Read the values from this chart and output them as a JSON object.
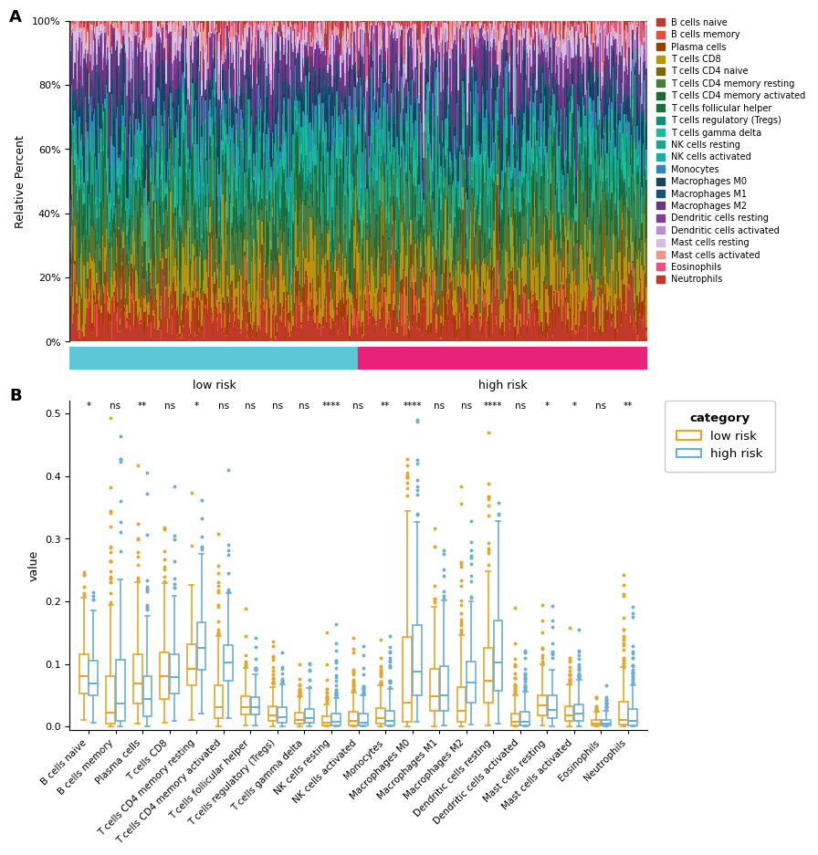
{
  "cell_types": [
    "B cells naive",
    "B cells memory",
    "Plasma cells",
    "T cells CD8",
    "T cells CD4 naive",
    "T cells CD4 memory resting",
    "T cells CD4 memory activated",
    "T cells follicular helper",
    "T cells regulatory (Tregs)",
    "T cells gamma delta",
    "NK cells resting",
    "NK cells activated",
    "Monocytes",
    "Macrophages M0",
    "Macrophages M1",
    "Macrophages M2",
    "Dendritic cells resting",
    "Dendritic cells activated",
    "Mast cells resting",
    "Mast cells activated",
    "Eosinophils",
    "Neutrophils"
  ],
  "cell_colors": [
    "#C0392B",
    "#E74C3C",
    "#A04000",
    "#B7950B",
    "#7D6608",
    "#4A7C3F",
    "#1D6A3B",
    "#196F3D",
    "#148F77",
    "#1ABC9C",
    "#17A589",
    "#1AAEAB",
    "#2E86C1",
    "#154360",
    "#1A5276",
    "#6C3483",
    "#7D3C98",
    "#BB8FCE",
    "#D7BDE2",
    "#F1948A",
    "#E75480",
    "#C0392B"
  ],
  "n_low": 250,
  "n_high": 250,
  "low_color": "#5BC8D8",
  "high_color": "#E8217A",
  "panel_A_label": "A",
  "panel_B_label": "B",
  "ylabel_A": "Relative Percent",
  "ylabel_B": "value",
  "low_risk_label": "low risk",
  "high_risk_label": "high risk",
  "significance": [
    "*",
    "ns",
    "**",
    "ns",
    "*",
    "ns",
    "ns",
    "ns",
    "ns",
    "****",
    "ns",
    "**",
    "****",
    "ns",
    "ns",
    "****",
    "ns",
    "*",
    "*",
    "ns",
    "**"
  ],
  "box_categories": [
    "B cells naive",
    "B cells memory",
    "Plasma cells",
    "T cells CD8",
    "T cells CD4 memory resting",
    "T cells CD4 memory activated",
    "T cells follicular helper",
    "T cells regulatory (Tregs)",
    "T cells gamma delta",
    "NK cells resting",
    "NK cells activated",
    "Monocytes",
    "Macrophages M0",
    "Macrophages M1",
    "Macrophages M2",
    "Dendritic cells resting",
    "Dendritic cells activated",
    "Mast cells resting",
    "Mast cells activated",
    "Eosinophils",
    "Neutrophils"
  ],
  "low_risk_color": "#E8A427",
  "high_risk_color": "#6BAED6",
  "legend_category": "category",
  "legend_low": "low risk",
  "legend_high": "high risk",
  "means_low": [
    0.09,
    0.005,
    0.09,
    0.09,
    0.1,
    0.055,
    0.035,
    0.025,
    0.018,
    0.012,
    0.01,
    0.02,
    0.04,
    0.065,
    0.055,
    0.1,
    0.015,
    0.035,
    0.025,
    0.008,
    0.008
  ],
  "means_high": [
    0.085,
    0.004,
    0.065,
    0.092,
    0.135,
    0.105,
    0.035,
    0.022,
    0.018,
    0.01,
    0.01,
    0.012,
    0.11,
    0.068,
    0.085,
    0.12,
    0.012,
    0.035,
    0.025,
    0.008,
    0.01
  ],
  "stds": [
    0.05,
    0.025,
    0.07,
    0.055,
    0.055,
    0.055,
    0.022,
    0.022,
    0.018,
    0.018,
    0.018,
    0.022,
    0.09,
    0.055,
    0.065,
    0.08,
    0.022,
    0.03,
    0.022,
    0.01,
    0.022
  ],
  "ylim_B": [
    -0.005,
    0.52
  ]
}
